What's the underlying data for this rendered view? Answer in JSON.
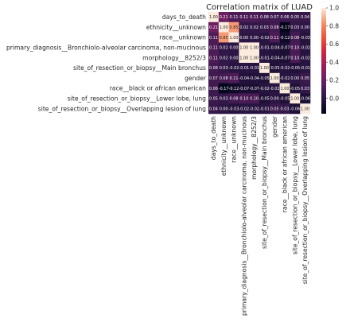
{
  "chart_data": {
    "type": "heatmap",
    "title": "Correlation matrix of LUAD",
    "labels": [
      "days_to_death",
      "ethnicity__unknown",
      "race__unknown",
      "primary_diagnosis__Bronchiolo-alveolar carcinoma, non-mucinous",
      "morphology__8252/3",
      "site_of_resection_or_biopsy__Main bronchus",
      "gender",
      "race__black or african american",
      "site_of_resection_or_biopsy__Lower lobe, lung",
      "site_of_resection_or_biopsy__Overlapping lesion of lung"
    ],
    "values": [
      [
        1.0,
        0.21,
        0.11,
        0.11,
        0.11,
        0.08,
        0.07,
        0.06,
        0.05,
        0.04
      ],
      [
        0.21,
        1.0,
        0.85,
        0.02,
        0.02,
        0.03,
        0.08,
        -0.17,
        0.03,
        0.0
      ],
      [
        0.11,
        0.85,
        1.0,
        0.0,
        0.0,
        -0.02,
        0.11,
        -0.12,
        0.08,
        -0.03
      ],
      [
        0.11,
        0.02,
        0.0,
        1.0,
        1.0,
        -0.01,
        -0.04,
        -0.07,
        0.1,
        -0.02
      ],
      [
        0.11,
        0.02,
        0.0,
        1.0,
        1.0,
        -0.01,
        -0.04,
        -0.07,
        0.1,
        -0.02
      ],
      [
        0.08,
        0.03,
        -0.02,
        -0.01,
        -0.01,
        1.0,
        -0.05,
        -0.02,
        -0.05,
        -0.01
      ],
      [
        0.07,
        0.08,
        0.11,
        -0.04,
        -0.04,
        -0.05,
        1.0,
        -0.02,
        0.0,
        0.05
      ],
      [
        0.06,
        -0.17,
        -0.12,
        -0.07,
        -0.07,
        -0.02,
        -0.02,
        1.0,
        -0.05,
        0.03
      ],
      [
        0.05,
        0.03,
        0.08,
        0.1,
        0.1,
        -0.05,
        0.0,
        -0.05,
        1.0,
        -0.06
      ],
      [
        0.04,
        0.0,
        -0.03,
        -0.02,
        -0.02,
        -0.01,
        0.05,
        0.03,
        -0.06,
        1.0
      ]
    ],
    "colorbar": {
      "ticks": [
        1.0,
        0.8,
        0.6,
        0.4,
        0.2,
        0.0
      ]
    },
    "colormap": "rocket"
  }
}
